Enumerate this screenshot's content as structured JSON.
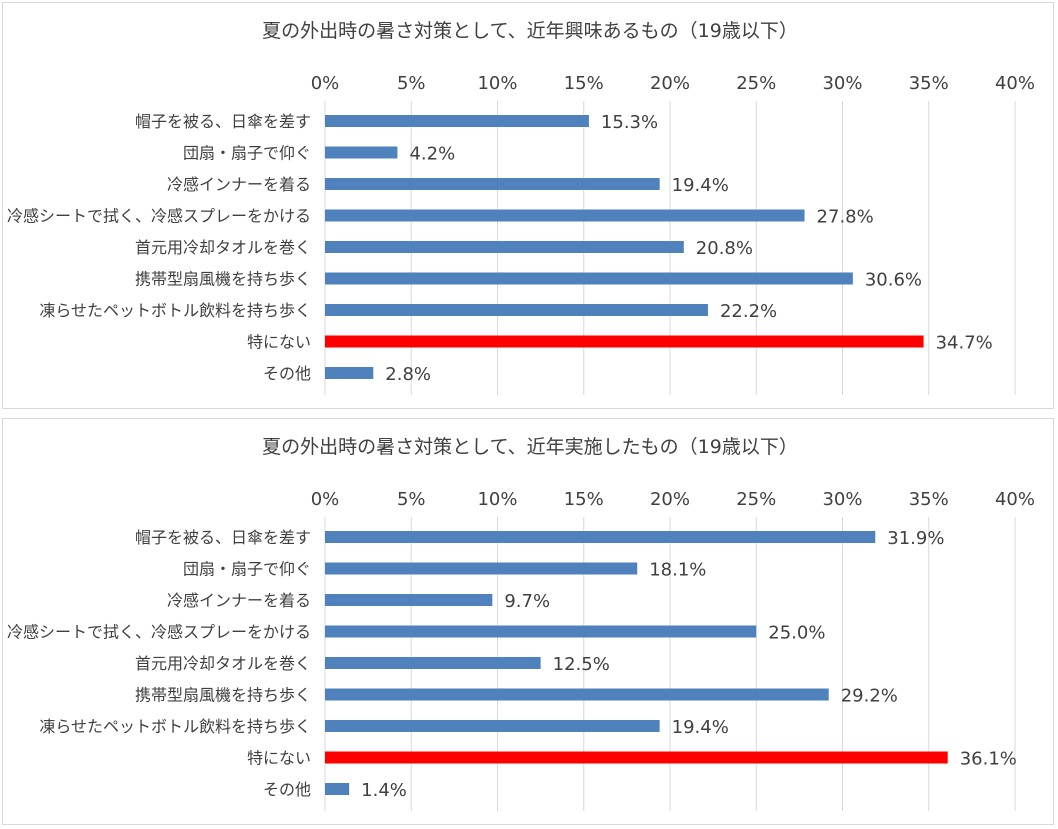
{
  "chart_data": [
    {
      "type": "bar",
      "orientation": "horizontal",
      "title": "夏の外出時の暑さ対策として、近年興味あるもの（19歳以下）",
      "categories": [
        "帽子を被る、日傘を差す",
        "団扇・扇子で仰ぐ",
        "冷感インナーを着る",
        "冷感シートで拭く、冷感スプレーをかける",
        "首元用冷却タオルを巻く",
        "携帯型扇風機を持ち歩く",
        "凍らせたペットボトル飲料を持ち歩く",
        "特にない",
        "その他"
      ],
      "values": [
        15.3,
        4.2,
        19.4,
        27.8,
        20.8,
        30.6,
        22.2,
        34.7,
        2.8
      ],
      "value_labels": [
        "15.3%",
        "4.2%",
        "19.4%",
        "27.8%",
        "20.8%",
        "30.6%",
        "22.2%",
        "34.7%",
        "2.8%"
      ],
      "highlight_index": 7,
      "xlim": [
        0,
        40
      ],
      "tick_labels": [
        "0%",
        "5%",
        "10%",
        "15%",
        "20%",
        "25%",
        "30%",
        "35%",
        "40%"
      ],
      "x_axis_position": "top",
      "grid": true,
      "legend": "none",
      "colors": {
        "bar": "#4f81bd",
        "highlight": "#ff0000",
        "grid": "#d9d9d9",
        "text": "#404040"
      }
    },
    {
      "type": "bar",
      "orientation": "horizontal",
      "title": "夏の外出時の暑さ対策として、近年実施したもの（19歳以下）",
      "categories": [
        "帽子を被る、日傘を差す",
        "団扇・扇子で仰ぐ",
        "冷感インナーを着る",
        "冷感シートで拭く、冷感スプレーをかける",
        "首元用冷却タオルを巻く",
        "携帯型扇風機を持ち歩く",
        "凍らせたペットボトル飲料を持ち歩く",
        "特にない",
        "その他"
      ],
      "values": [
        31.9,
        18.1,
        9.7,
        25.0,
        12.5,
        29.2,
        19.4,
        36.1,
        1.4
      ],
      "value_labels": [
        "31.9%",
        "18.1%",
        "9.7%",
        "25.0%",
        "12.5%",
        "29.2%",
        "19.4%",
        "36.1%",
        "1.4%"
      ],
      "highlight_index": 7,
      "xlim": [
        0,
        40
      ],
      "tick_labels": [
        "0%",
        "5%",
        "10%",
        "15%",
        "20%",
        "25%",
        "30%",
        "35%",
        "40%"
      ],
      "x_axis_position": "top",
      "grid": true,
      "legend": "none",
      "colors": {
        "bar": "#4f81bd",
        "highlight": "#ff0000",
        "grid": "#d9d9d9",
        "text": "#404040"
      }
    }
  ]
}
